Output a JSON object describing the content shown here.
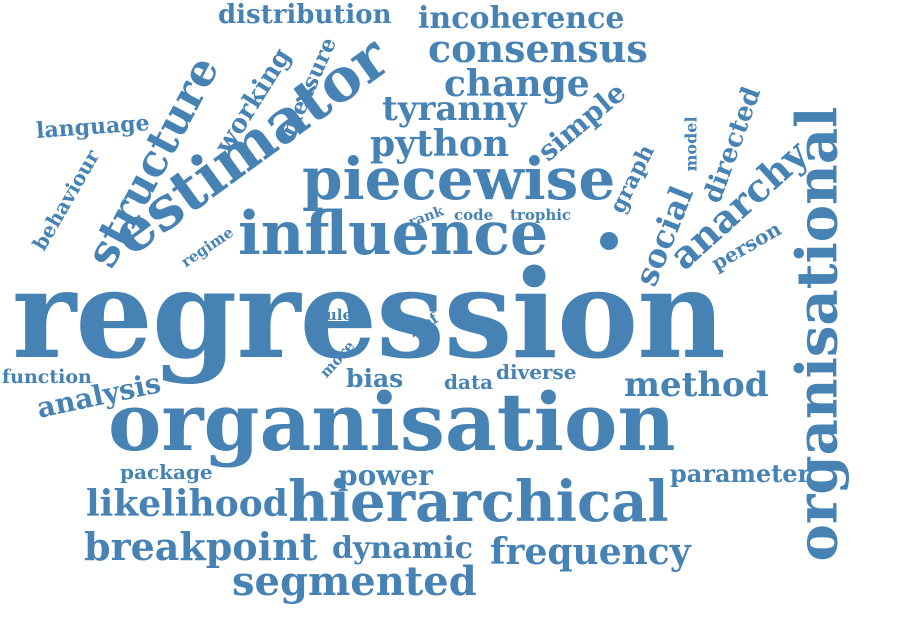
{
  "colors": {
    "word": "#4682b4",
    "background": "#ffffff"
  },
  "words": [
    "regression",
    "organisation",
    "organisational",
    "estimator",
    "influence",
    "piecewise",
    "hierarchical",
    "structure",
    "consensus",
    "incoherence",
    "distribution",
    "change",
    "tyranny",
    "python",
    "simple",
    "anarchy",
    "method",
    "breakpoint",
    "segmented",
    "frequency",
    "likelihood",
    "dynamic",
    "power",
    "analysis",
    "parameter",
    "package",
    "function",
    "bias",
    "data",
    "diverse",
    "working",
    "measure",
    "language",
    "behaviour",
    "regime",
    "rank",
    "code",
    "trophic",
    "social",
    "graph",
    "model",
    "directed",
    "person",
    "rule",
    "zipf",
    "more"
  ]
}
